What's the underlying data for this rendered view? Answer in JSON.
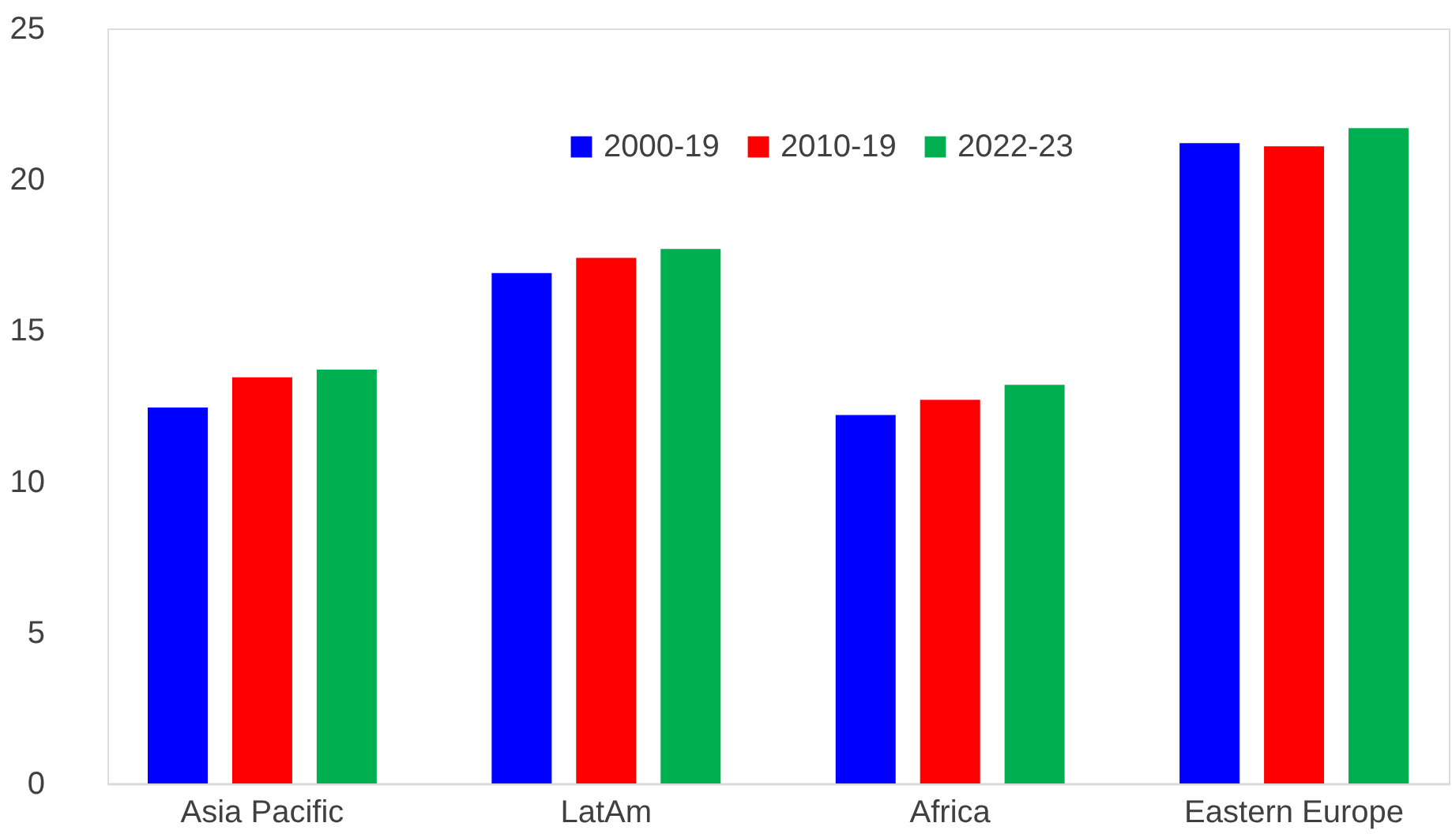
{
  "chart_data": {
    "type": "bar",
    "categories": [
      "Asia Pacific",
      "LatAm",
      "Africa",
      "Eastern Europe"
    ],
    "series": [
      {
        "name": "2000-19",
        "color": "#0000ff",
        "values": [
          12.45,
          16.9,
          12.2,
          21.2
        ]
      },
      {
        "name": "2010-19",
        "color": "#ff0000",
        "values": [
          13.45,
          17.4,
          12.7,
          21.1
        ]
      },
      {
        "name": "2022-23",
        "color": "#00b050",
        "values": [
          13.7,
          17.7,
          13.2,
          21.7
        ]
      }
    ],
    "ylim": [
      0,
      25
    ],
    "yticks": [
      0,
      5,
      10,
      15,
      20,
      25
    ],
    "grid": false,
    "legend": "top"
  }
}
